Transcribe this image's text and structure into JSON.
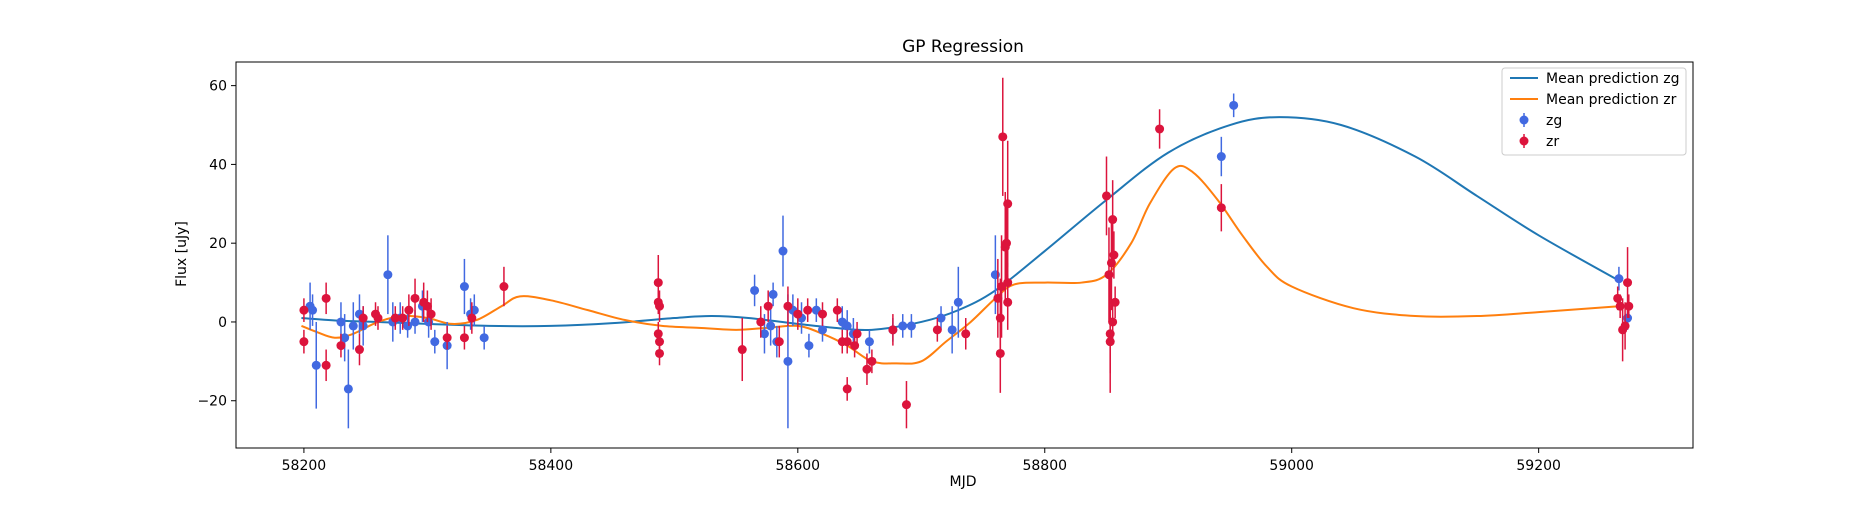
{
  "chart_data": {
    "type": "scatter",
    "title": "GP Regression",
    "xlabel": "MJD",
    "ylabel": "Flux [uJy]",
    "xlim": [
      58145,
      59325
    ],
    "ylim": [
      -32,
      66
    ],
    "x_ticks": [
      58200,
      58400,
      58600,
      58800,
      59000,
      59200
    ],
    "y_ticks": [
      -20,
      0,
      20,
      40,
      60
    ],
    "legend_position": "top-right",
    "grid": false,
    "series": [
      {
        "name": "Mean prediction zg",
        "kind": "line",
        "color": "#1f77b4",
        "x": [
          58198,
          58230,
          58260,
          58300,
          58350,
          58400,
          58450,
          58500,
          58530,
          58560,
          58600,
          58630,
          58660,
          58700,
          58730,
          58760,
          58800,
          58850,
          58900,
          58950,
          58990,
          59040,
          59100,
          59150,
          59200,
          59265
        ],
        "y": [
          1.0,
          0.3,
          0.0,
          -0.5,
          -1.0,
          -1.0,
          -0.3,
          1.0,
          1.5,
          1.0,
          -0.5,
          -1.5,
          -2.0,
          0.0,
          3.0,
          8.0,
          18.0,
          31.0,
          43.0,
          50.0,
          52.0,
          50.0,
          42.0,
          32.0,
          22.0,
          10.5
        ]
      },
      {
        "name": "Mean prediction zr",
        "kind": "line",
        "color": "#ff7f0e",
        "x": [
          58198,
          58210,
          58225,
          58240,
          58260,
          58280,
          58300,
          58320,
          58340,
          58360,
          58375,
          58400,
          58430,
          58460,
          58490,
          58520,
          58550,
          58575,
          58600,
          58620,
          58640,
          58660,
          58680,
          58700,
          58720,
          58740,
          58760,
          58775,
          58800,
          58830,
          58850,
          58870,
          58885,
          58905,
          58920,
          58940,
          58960,
          58980,
          59000,
          59050,
          59100,
          59150,
          59200,
          59265
        ],
        "y": [
          -1.0,
          -2.5,
          -4.0,
          -3.0,
          0.0,
          1.5,
          1.0,
          -0.5,
          0.5,
          4.0,
          6.5,
          5.5,
          3.0,
          0.5,
          -1.0,
          -1.5,
          -2.0,
          -1.5,
          -1.0,
          -3.0,
          -6.0,
          -10.0,
          -10.5,
          -10.0,
          -5.0,
          0.0,
          6.0,
          9.5,
          10.0,
          10.0,
          12.0,
          20.0,
          30.0,
          39.0,
          38.0,
          31.0,
          22.0,
          14.0,
          9.0,
          3.5,
          1.5,
          1.5,
          2.5,
          4.0
        ]
      },
      {
        "name": "zg",
        "kind": "errorbar",
        "color": "#4169e1",
        "points": [
          {
            "x": 58205,
            "y": 4,
            "err": 6
          },
          {
            "x": 58207,
            "y": 3,
            "err": 4
          },
          {
            "x": 58210,
            "y": -11,
            "err": 11
          },
          {
            "x": 58230,
            "y": 0,
            "err": 5
          },
          {
            "x": 58233,
            "y": -4,
            "err": 6
          },
          {
            "x": 58236,
            "y": -17,
            "err": 10
          },
          {
            "x": 58240,
            "y": -1,
            "err": 6
          },
          {
            "x": 58245,
            "y": 2,
            "err": 5
          },
          {
            "x": 58248,
            "y": -1,
            "err": 5
          },
          {
            "x": 58268,
            "y": 12,
            "err": 10
          },
          {
            "x": 58272,
            "y": 0,
            "err": 5
          },
          {
            "x": 58278,
            "y": 1,
            "err": 4
          },
          {
            "x": 58284,
            "y": -1,
            "err": 3
          },
          {
            "x": 58290,
            "y": 0,
            "err": 3
          },
          {
            "x": 58296,
            "y": 4,
            "err": 4
          },
          {
            "x": 58301,
            "y": 0,
            "err": 4
          },
          {
            "x": 58306,
            "y": -5,
            "err": 3
          },
          {
            "x": 58316,
            "y": -6,
            "err": 6
          },
          {
            "x": 58330,
            "y": 9,
            "err": 7
          },
          {
            "x": 58335,
            "y": 2,
            "err": 4
          },
          {
            "x": 58338,
            "y": 3,
            "err": 4
          },
          {
            "x": 58346,
            "y": -4,
            "err": 3
          },
          {
            "x": 58565,
            "y": 8,
            "err": 4
          },
          {
            "x": 58573,
            "y": -3,
            "err": 5
          },
          {
            "x": 58578,
            "y": -1,
            "err": 5
          },
          {
            "x": 58580,
            "y": 7,
            "err": 3
          },
          {
            "x": 58583,
            "y": -5,
            "err": 4
          },
          {
            "x": 58588,
            "y": 18,
            "err": 9
          },
          {
            "x": 58592,
            "y": -10,
            "err": 17
          },
          {
            "x": 58596,
            "y": 3,
            "err": 4
          },
          {
            "x": 58603,
            "y": 1,
            "err": 4
          },
          {
            "x": 58609,
            "y": -6,
            "err": 3
          },
          {
            "x": 58615,
            "y": 3,
            "err": 3
          },
          {
            "x": 58620,
            "y": -2,
            "err": 3
          },
          {
            "x": 58636,
            "y": 0,
            "err": 4
          },
          {
            "x": 58640,
            "y": -1,
            "err": 4
          },
          {
            "x": 58645,
            "y": -3,
            "err": 4
          },
          {
            "x": 58658,
            "y": -5,
            "err": 3
          },
          {
            "x": 58677,
            "y": -2,
            "err": 3
          },
          {
            "x": 58685,
            "y": -1,
            "err": 3
          },
          {
            "x": 58692,
            "y": -1,
            "err": 3
          },
          {
            "x": 58716,
            "y": 1,
            "err": 3
          },
          {
            "x": 58725,
            "y": -2,
            "err": 6
          },
          {
            "x": 58730,
            "y": 5,
            "err": 9
          },
          {
            "x": 58760,
            "y": 12,
            "err": 10
          },
          {
            "x": 58943,
            "y": 42,
            "err": 5
          },
          {
            "x": 58953,
            "y": 55,
            "err": 3
          },
          {
            "x": 59265,
            "y": 11,
            "err": 3
          },
          {
            "x": 59272,
            "y": 1,
            "err": 3
          }
        ]
      },
      {
        "name": "zr",
        "kind": "errorbar",
        "color": "#dc143c",
        "points": [
          {
            "x": 58200,
            "y": 3,
            "err": 3
          },
          {
            "x": 58200,
            "y": -5,
            "err": 3
          },
          {
            "x": 58218,
            "y": 6,
            "err": 4
          },
          {
            "x": 58218,
            "y": -11,
            "err": 4
          },
          {
            "x": 58230,
            "y": -6,
            "err": 3
          },
          {
            "x": 58245,
            "y": -7,
            "err": 4
          },
          {
            "x": 58248,
            "y": 1,
            "err": 3
          },
          {
            "x": 58258,
            "y": 2,
            "err": 3
          },
          {
            "x": 58260,
            "y": 1,
            "err": 3
          },
          {
            "x": 58274,
            "y": 1,
            "err": 3
          },
          {
            "x": 58280,
            "y": 1,
            "err": 3
          },
          {
            "x": 58285,
            "y": 3,
            "err": 4
          },
          {
            "x": 58290,
            "y": 6,
            "err": 5
          },
          {
            "x": 58297,
            "y": 5,
            "err": 5
          },
          {
            "x": 58300,
            "y": 4,
            "err": 4
          },
          {
            "x": 58303,
            "y": 2,
            "err": 4
          },
          {
            "x": 58316,
            "y": -4,
            "err": 3
          },
          {
            "x": 58330,
            "y": -4,
            "err": 3
          },
          {
            "x": 58336,
            "y": 1,
            "err": 4
          },
          {
            "x": 58362,
            "y": 9,
            "err": 5
          },
          {
            "x": 58487,
            "y": 10,
            "err": 7
          },
          {
            "x": 58487,
            "y": 5,
            "err": 3
          },
          {
            "x": 58488,
            "y": 4,
            "err": 4
          },
          {
            "x": 58487,
            "y": -3,
            "err": 3
          },
          {
            "x": 58488,
            "y": -5,
            "err": 3
          },
          {
            "x": 58488,
            "y": -8,
            "err": 3
          },
          {
            "x": 58555,
            "y": -7,
            "err": 8
          },
          {
            "x": 58570,
            "y": 0,
            "err": 4
          },
          {
            "x": 58576,
            "y": 4,
            "err": 4
          },
          {
            "x": 58585,
            "y": -5,
            "err": 4
          },
          {
            "x": 58592,
            "y": 4,
            "err": 5
          },
          {
            "x": 58600,
            "y": 2,
            "err": 4
          },
          {
            "x": 58608,
            "y": 3,
            "err": 3
          },
          {
            "x": 58620,
            "y": 2,
            "err": 3
          },
          {
            "x": 58632,
            "y": 3,
            "err": 3
          },
          {
            "x": 58636,
            "y": -5,
            "err": 3
          },
          {
            "x": 58640,
            "y": -5,
            "err": 3
          },
          {
            "x": 58640,
            "y": -17,
            "err": 3
          },
          {
            "x": 58646,
            "y": -6,
            "err": 3
          },
          {
            "x": 58648,
            "y": -3,
            "err": 3
          },
          {
            "x": 58656,
            "y": -12,
            "err": 4
          },
          {
            "x": 58660,
            "y": -10,
            "err": 3
          },
          {
            "x": 58677,
            "y": -2,
            "err": 4
          },
          {
            "x": 58688,
            "y": -21,
            "err": 6
          },
          {
            "x": 58713,
            "y": -2,
            "err": 3
          },
          {
            "x": 58736,
            "y": -3,
            "err": 4
          },
          {
            "x": 58762,
            "y": 6,
            "err": 10
          },
          {
            "x": 58764,
            "y": 1,
            "err": 10
          },
          {
            "x": 58764,
            "y": -8,
            "err": 10
          },
          {
            "x": 58765,
            "y": 9,
            "err": 13
          },
          {
            "x": 58766,
            "y": 47,
            "err": 15
          },
          {
            "x": 58768,
            "y": 19,
            "err": 14
          },
          {
            "x": 58769,
            "y": 20,
            "err": 10
          },
          {
            "x": 58770,
            "y": 30,
            "err": 16
          },
          {
            "x": 58770,
            "y": 10,
            "err": 5
          },
          {
            "x": 58770,
            "y": 5,
            "err": 7
          },
          {
            "x": 58850,
            "y": 32,
            "err": 10
          },
          {
            "x": 58852,
            "y": 12,
            "err": 12
          },
          {
            "x": 58853,
            "y": -3,
            "err": 15
          },
          {
            "x": 58853,
            "y": -5,
            "err": 8
          },
          {
            "x": 58854,
            "y": 15,
            "err": 12
          },
          {
            "x": 58855,
            "y": 26,
            "err": 10
          },
          {
            "x": 58856,
            "y": 17,
            "err": 6
          },
          {
            "x": 58855,
            "y": 0,
            "err": 5
          },
          {
            "x": 58857,
            "y": 5,
            "err": 4
          },
          {
            "x": 58893,
            "y": 49,
            "err": 5
          },
          {
            "x": 58943,
            "y": 29,
            "err": 6
          },
          {
            "x": 59264,
            "y": 6,
            "err": 3
          },
          {
            "x": 59266,
            "y": 4,
            "err": 3
          },
          {
            "x": 59268,
            "y": -2,
            "err": 8
          },
          {
            "x": 59270,
            "y": -1,
            "err": 6
          },
          {
            "x": 59272,
            "y": 10,
            "err": 9
          },
          {
            "x": 59273,
            "y": 4,
            "err": 3
          }
        ]
      }
    ]
  }
}
